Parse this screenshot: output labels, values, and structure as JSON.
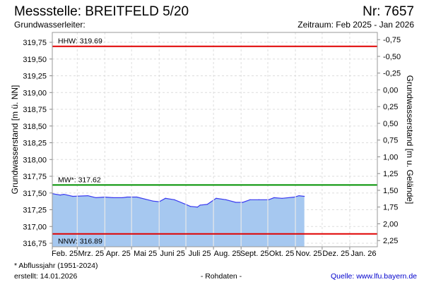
{
  "header": {
    "title": "Messstelle: BREITFELD 5/20",
    "number": "Nr: 7657",
    "aquifer": "Grundwasserleiter:",
    "period": "Zeitraum: Feb 2025 - Jan 2026"
  },
  "footer": {
    "note": "* Abflussjahr (1951-2024)",
    "created": "erstellt:  14.01.2026",
    "raw": "- Rohdaten -",
    "source": "Quelle: www.lfu.bayern.de"
  },
  "colors": {
    "fill": "#a6c8f0",
    "line": "#3a3af0",
    "hhw": "#e00000",
    "nnw": "#e00000",
    "mw": "#009000",
    "source": "#0000cc"
  },
  "chart_data": {
    "type": "area",
    "ylabel": "Grundwasserstand [m ü. NN]",
    "ylabel_right": "Grundwasserstand [m u. Gelände]",
    "ylim": [
      316.68,
      319.85
    ],
    "ground_level_m": 319.04,
    "yticks": [
      "319,75",
      "319,50",
      "319,25",
      "319,00",
      "318,75",
      "318,50",
      "318,25",
      "318,00",
      "317,75",
      "317,50",
      "317,25",
      "317,00",
      "316,75"
    ],
    "ytick_values": [
      319.75,
      319.5,
      319.25,
      319.0,
      318.75,
      318.5,
      318.25,
      318.0,
      317.75,
      317.5,
      317.25,
      317.0,
      316.75
    ],
    "yticks_right": [
      "-0,75",
      "-0,50",
      "-0,25",
      "0,00",
      "0,25",
      "0,50",
      "0,75",
      "1,00",
      "1,25",
      "1,50",
      "1,75",
      "2,00",
      "2,25"
    ],
    "ytick_right_values": [
      -0.75,
      -0.5,
      -0.25,
      0,
      0.25,
      0.5,
      0.75,
      1.0,
      1.25,
      1.5,
      1.75,
      2.0,
      2.25
    ],
    "x_unit": "days since 2025-02-01",
    "xlim": [
      0,
      365
    ],
    "months": [
      {
        "label": "Feb. 25",
        "start": 0,
        "end": 28
      },
      {
        "label": "Mrz. 25",
        "start": 28,
        "end": 59
      },
      {
        "label": "Apr. 25",
        "start": 59,
        "end": 89
      },
      {
        "label": "Mai 25",
        "start": 89,
        "end": 120
      },
      {
        "label": "Juni 25",
        "start": 120,
        "end": 150
      },
      {
        "label": "Juli 25",
        "start": 150,
        "end": 181
      },
      {
        "label": "Aug. 25",
        "start": 181,
        "end": 212
      },
      {
        "label": "Sept. 25",
        "start": 212,
        "end": 242
      },
      {
        "label": "Okt. 25",
        "start": 242,
        "end": 273
      },
      {
        "label": "Nov. 25",
        "start": 273,
        "end": 303
      },
      {
        "label": "Dez. 25",
        "start": 303,
        "end": 334
      },
      {
        "label": "Jan. 26",
        "start": 334,
        "end": 365
      }
    ],
    "series": [
      {
        "name": "Grundwasserstand",
        "x": [
          0,
          9,
          13,
          23,
          40,
          49,
          59,
          68,
          79,
          84,
          95,
          113,
          120,
          127,
          137,
          150,
          155,
          163,
          166,
          174,
          184,
          195,
          206,
          214,
          222,
          232,
          243,
          249,
          258,
          272,
          277,
          283
        ],
        "y": [
          317.49,
          317.47,
          317.48,
          317.45,
          317.46,
          317.43,
          317.44,
          317.43,
          317.43,
          317.44,
          317.44,
          317.38,
          317.37,
          317.42,
          317.4,
          317.33,
          317.3,
          317.29,
          317.32,
          317.33,
          317.42,
          317.4,
          317.36,
          317.36,
          317.4,
          317.4,
          317.4,
          317.43,
          317.42,
          317.44,
          317.46,
          317.45
        ]
      }
    ],
    "reference_lines": [
      {
        "label": "HHW: 319.69",
        "value": 319.69,
        "color": "#e00000"
      },
      {
        "label": "MW*: 317.62",
        "value": 317.62,
        "color": "#009000"
      },
      {
        "label": "NNW: 316.89",
        "value": 316.89,
        "color": "#e00000"
      }
    ],
    "grid": true
  }
}
